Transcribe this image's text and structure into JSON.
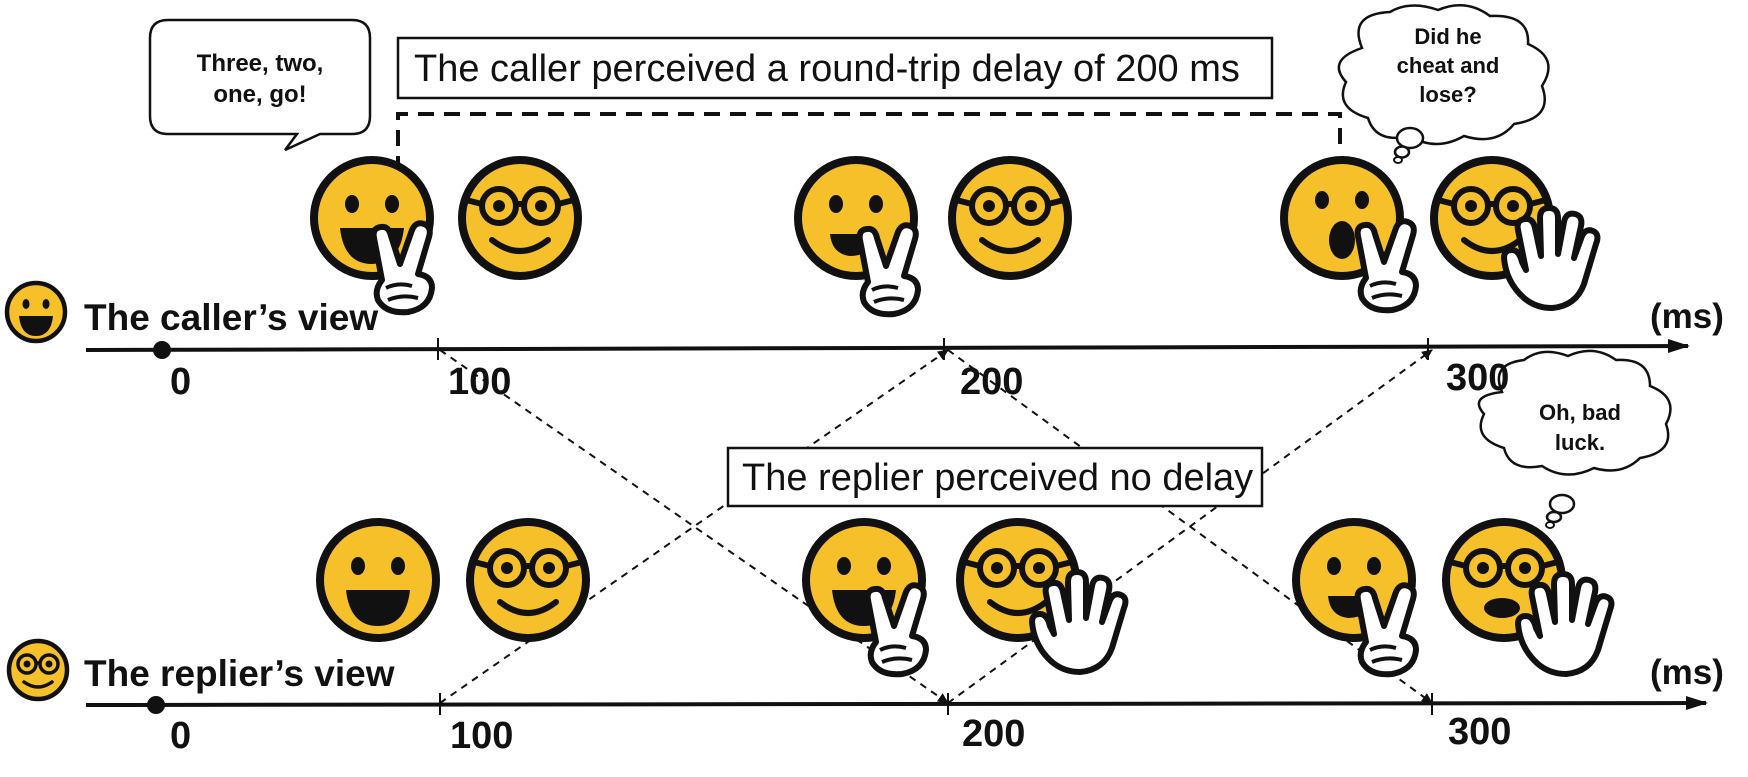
{
  "speech_bubble": {
    "line1": "Three, two,",
    "line2": "one, go!"
  },
  "thought_top": {
    "line1": "Did he",
    "line2": "cheat and",
    "line3": "lose?"
  },
  "thought_bottom": {
    "line1": "Oh, bad",
    "line2": "luck."
  },
  "caller_delay_label": "The caller perceived a round-trip delay of 200 ms",
  "replier_delay_label": "The replier perceived no delay",
  "caller_timeline": {
    "label": "The caller’s view",
    "unit": "(ms)",
    "ticks": [
      "0",
      "100",
      "200",
      "300"
    ]
  },
  "replier_timeline": {
    "label": "The replier’s view",
    "unit": "(ms)",
    "ticks": [
      "0",
      "100",
      "200",
      "300"
    ]
  },
  "colors": {
    "face": "#f5c02a",
    "outline": "#111111"
  }
}
